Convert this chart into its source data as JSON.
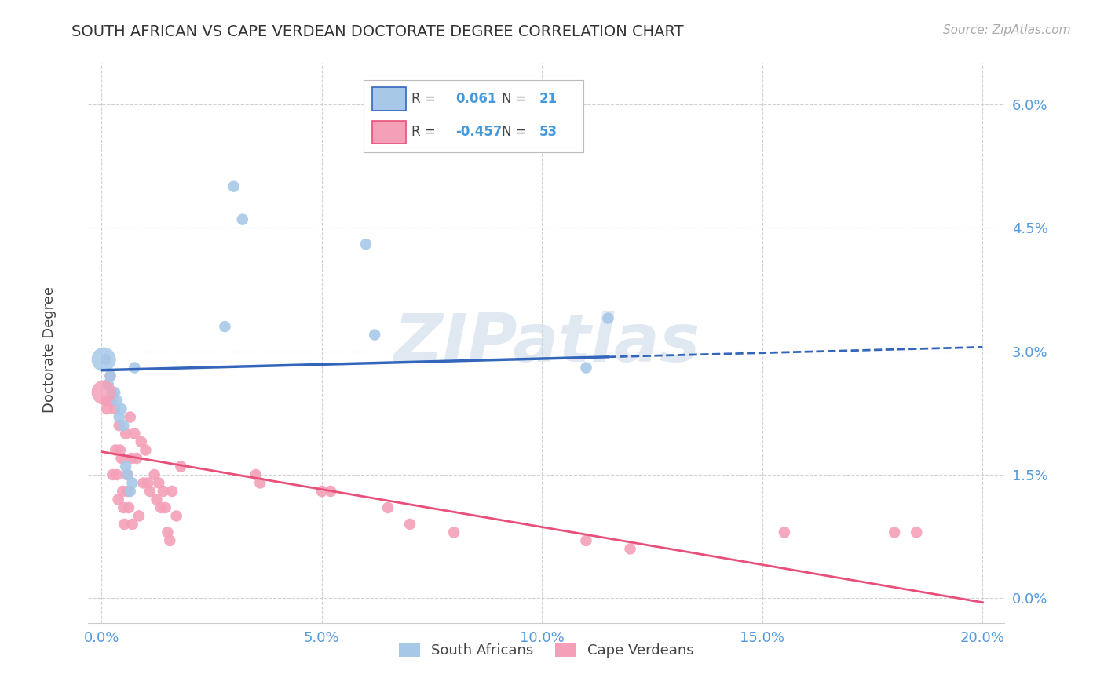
{
  "title": "SOUTH AFRICAN VS CAPE VERDEAN DOCTORATE DEGREE CORRELATION CHART",
  "source": "Source: ZipAtlas.com",
  "xlabel_ticks": [
    "0.0%",
    "5.0%",
    "10.0%",
    "15.0%",
    "20.0%"
  ],
  "xlabel_tick_vals": [
    0.0,
    5.0,
    10.0,
    15.0,
    20.0
  ],
  "ylabel_ticks": [
    "0.0%",
    "1.5%",
    "3.0%",
    "4.5%",
    "6.0%"
  ],
  "ylabel_tick_vals": [
    0.0,
    1.5,
    3.0,
    4.5,
    6.0
  ],
  "xlim": [
    -0.3,
    20.5
  ],
  "ylim": [
    -0.3,
    6.5
  ],
  "sa_color": "#a8c8e8",
  "cv_color": "#f4a0b8",
  "sa_line_color": "#3366bb",
  "cv_line_color": "#e8507a",
  "sa_R": 0.061,
  "sa_N": 21,
  "cv_R": -0.457,
  "cv_N": 53,
  "watermark": "ZIPatlas",
  "legend_label_sa": "South Africans",
  "legend_label_cv": "Cape Verdeans",
  "sa_x": [
    0.1,
    0.15,
    0.2,
    0.25,
    0.3,
    0.35,
    0.4,
    0.45,
    0.5,
    0.55,
    0.6,
    0.65,
    0.7,
    0.75,
    2.8,
    3.0,
    3.2,
    6.0,
    6.2,
    11.0,
    11.5
  ],
  "sa_y": [
    2.9,
    2.6,
    2.7,
    2.5,
    2.5,
    2.4,
    2.2,
    2.3,
    2.1,
    1.6,
    1.5,
    1.3,
    1.4,
    2.8,
    3.3,
    5.0,
    4.6,
    4.3,
    3.2,
    2.8,
    3.4
  ],
  "cv_x": [
    0.1,
    0.12,
    0.2,
    0.22,
    0.25,
    0.3,
    0.32,
    0.35,
    0.38,
    0.4,
    0.42,
    0.45,
    0.48,
    0.5,
    0.52,
    0.55,
    0.58,
    0.6,
    0.62,
    0.65,
    0.68,
    0.7,
    0.75,
    0.8,
    0.85,
    0.9,
    0.95,
    1.0,
    1.05,
    1.1,
    1.2,
    1.25,
    1.3,
    1.35,
    1.4,
    1.45,
    1.5,
    1.55,
    1.6,
    1.7,
    1.8,
    3.5,
    3.6,
    5.0,
    5.2,
    6.5,
    7.0,
    8.0,
    11.0,
    12.0,
    15.5,
    18.0,
    18.5
  ],
  "cv_y": [
    2.4,
    2.3,
    2.7,
    2.4,
    1.5,
    2.3,
    1.8,
    1.5,
    1.2,
    2.1,
    1.8,
    1.7,
    1.3,
    1.1,
    0.9,
    2.0,
    1.5,
    1.3,
    1.1,
    2.2,
    1.7,
    0.9,
    2.0,
    1.7,
    1.0,
    1.9,
    1.4,
    1.8,
    1.4,
    1.3,
    1.5,
    1.2,
    1.4,
    1.1,
    1.3,
    1.1,
    0.8,
    0.7,
    1.3,
    1.0,
    1.6,
    1.5,
    1.4,
    1.3,
    1.3,
    1.1,
    0.9,
    0.8,
    0.7,
    0.6,
    0.8,
    0.8,
    0.8
  ],
  "sa_line_x0": 0.0,
  "sa_line_x1": 20.0,
  "sa_line_y0": 2.77,
  "sa_line_y1": 3.05,
  "sa_line_solid_x1": 11.5,
  "cv_line_x0": 0.0,
  "cv_line_x1": 20.0,
  "cv_line_y0": 1.78,
  "cv_line_y1": -0.05
}
